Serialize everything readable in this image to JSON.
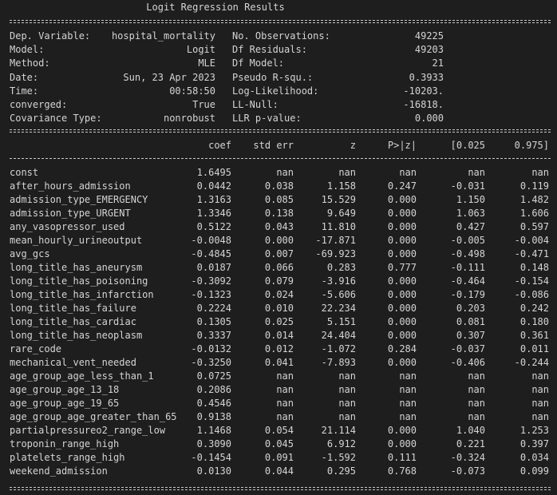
{
  "title": "Logit Regression Results",
  "header_left": [
    [
      "Dep. Variable:",
      "hospital_mortality"
    ],
    [
      "Model:",
      "Logit"
    ],
    [
      "Method:",
      "MLE"
    ],
    [
      "Date:",
      "Sun, 23 Apr 2023"
    ],
    [
      "Time:",
      "00:58:50"
    ],
    [
      "converged:",
      "True"
    ],
    [
      "Covariance Type:",
      "nonrobust"
    ]
  ],
  "header_right": [
    [
      "No. Observations:",
      "49225"
    ],
    [
      "Df Residuals:",
      "49203"
    ],
    [
      "Df Model:",
      "21"
    ],
    [
      "Pseudo R-squ.:",
      "0.3933"
    ],
    [
      "Log-Likelihood:",
      "-10203."
    ],
    [
      "LL-Null:",
      "-16818."
    ],
    [
      "LLR p-value:",
      "0.000"
    ]
  ],
  "columns": [
    "coef",
    "std err",
    "z",
    "P>|z|",
    "[0.025",
    "0.975]"
  ],
  "rows": [
    [
      "const",
      "1.6495",
      "nan",
      "nan",
      "nan",
      "nan",
      "nan"
    ],
    [
      "after_hours_admission",
      "0.0442",
      "0.038",
      "1.158",
      "0.247",
      "-0.031",
      "0.119"
    ],
    [
      "admission_type_EMERGENCY",
      "1.3163",
      "0.085",
      "15.529",
      "0.000",
      "1.150",
      "1.482"
    ],
    [
      "admission_type_URGENT",
      "1.3346",
      "0.138",
      "9.649",
      "0.000",
      "1.063",
      "1.606"
    ],
    [
      "any_vasopressor_used",
      "0.5122",
      "0.043",
      "11.810",
      "0.000",
      "0.427",
      "0.597"
    ],
    [
      "mean_hourly_urineoutput",
      "-0.0048",
      "0.000",
      "-17.871",
      "0.000",
      "-0.005",
      "-0.004"
    ],
    [
      "avg_gcs",
      "-0.4845",
      "0.007",
      "-69.923",
      "0.000",
      "-0.498",
      "-0.471"
    ],
    [
      "long_title_has_aneurysm",
      "0.0187",
      "0.066",
      "0.283",
      "0.777",
      "-0.111",
      "0.148"
    ],
    [
      "long_title_has_poisoning",
      "-0.3092",
      "0.079",
      "-3.916",
      "0.000",
      "-0.464",
      "-0.154"
    ],
    [
      "long_title_has_infarction",
      "-0.1323",
      "0.024",
      "-5.606",
      "0.000",
      "-0.179",
      "-0.086"
    ],
    [
      "long_title_has_failure",
      "0.2224",
      "0.010",
      "22.234",
      "0.000",
      "0.203",
      "0.242"
    ],
    [
      "long_title_has_cardiac",
      "0.1305",
      "0.025",
      "5.151",
      "0.000",
      "0.081",
      "0.180"
    ],
    [
      "long_title_has_neoplasm",
      "0.3337",
      "0.014",
      "24.404",
      "0.000",
      "0.307",
      "0.361"
    ],
    [
      "rare_code",
      "-0.0132",
      "0.012",
      "-1.072",
      "0.284",
      "-0.037",
      "0.011"
    ],
    [
      "mechanical_vent_needed",
      "-0.3250",
      "0.041",
      "-7.893",
      "0.000",
      "-0.406",
      "-0.244"
    ],
    [
      "age_group_age_less_than_1",
      "0.0725",
      "nan",
      "nan",
      "nan",
      "nan",
      "nan"
    ],
    [
      "age_group_age_13_18",
      "0.2086",
      "nan",
      "nan",
      "nan",
      "nan",
      "nan"
    ],
    [
      "age_group_age_19_65",
      "0.4546",
      "nan",
      "nan",
      "nan",
      "nan",
      "nan"
    ],
    [
      "age_group_age_greater_than_65",
      "0.9138",
      "nan",
      "nan",
      "nan",
      "nan",
      "nan"
    ],
    [
      "partialpressureo2_range_low",
      "1.1468",
      "0.054",
      "21.114",
      "0.000",
      "1.040",
      "1.253"
    ],
    [
      "troponin_range_high",
      "0.3090",
      "0.045",
      "6.912",
      "0.000",
      "0.221",
      "0.397"
    ],
    [
      "platelets_range_high",
      "-0.1454",
      "0.091",
      "-1.592",
      "0.111",
      "-0.324",
      "0.034"
    ],
    [
      "weekend_admission",
      "0.0130",
      "0.044",
      "0.295",
      "0.768",
      "-0.073",
      "0.099"
    ]
  ],
  "colors": {
    "background": "#1e1e1e",
    "text": "#d4d4d4"
  }
}
